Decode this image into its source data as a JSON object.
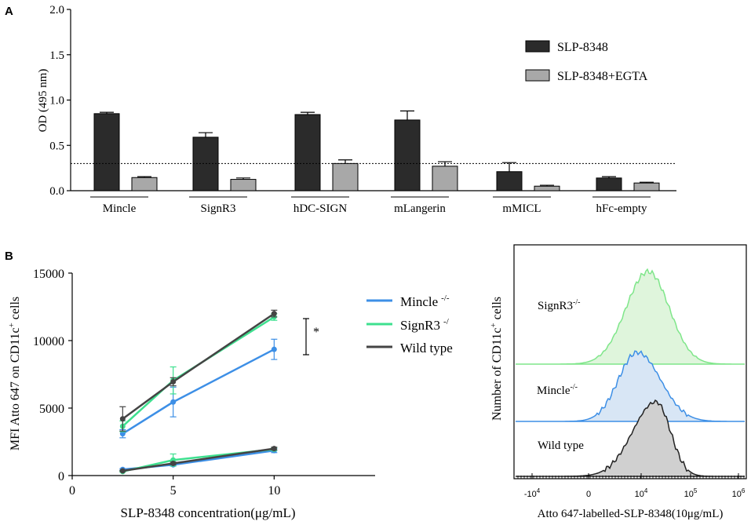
{
  "colors": {
    "bar_dark": "#2b2b2b",
    "bar_light": "#a8a8a8",
    "mincle": "#3d8fe6",
    "signr3": "#3ee08f",
    "wildtype": "#444444",
    "hist_signr3_fill": "#dff5dc",
    "hist_mincle_fill": "#d8e6f5",
    "hist_wt_fill": "#d0d0d0"
  },
  "chart_data": [
    {
      "panel": "A",
      "type": "bar",
      "title": "",
      "ylabel": "OD (495 nm)",
      "xlabel": "",
      "ylim": [
        0,
        2.0
      ],
      "yticks": [
        "0.0",
        "0.5",
        "1.0",
        "1.5",
        "2.0"
      ],
      "threshold": 0.3,
      "categories": [
        "Mincle",
        "SignR3",
        "hDC-SIGN",
        "mLangerin",
        "mMICL",
        "hFc-empty"
      ],
      "series": [
        {
          "name": "SLP-8348",
          "values": [
            0.85,
            0.59,
            0.84,
            0.78,
            0.21,
            0.14
          ],
          "errors": [
            0.015,
            0.05,
            0.025,
            0.1,
            0.1,
            0.015
          ]
        },
        {
          "name": "SLP-8348+EGTA",
          "values": [
            0.145,
            0.125,
            0.3,
            0.27,
            0.05,
            0.085
          ],
          "errors": [
            0.01,
            0.015,
            0.04,
            0.05,
            0.01,
            0.008
          ]
        }
      ],
      "legend": "top-right"
    },
    {
      "panel": "B",
      "type": "line",
      "title": "",
      "xlabel": "SLP-8348 concentration(μg/mL)",
      "ylabel": "MFI Atto 647 on CD11c+ cells",
      "xlim": [
        0,
        15
      ],
      "ylim": [
        0,
        15000
      ],
      "xticks": [
        "0",
        "5",
        "10"
      ],
      "yticks": [
        "0",
        "5000",
        "10000",
        "15000"
      ],
      "x": [
        2.5,
        5,
        10
      ],
      "series": [
        {
          "name": "Mincle -/-",
          "upper": [
            3100,
            5450,
            9350
          ],
          "upper_err": [
            300,
            1100,
            750
          ],
          "lower": [
            450,
            800,
            1850
          ],
          "lower_err": [
            60,
            100,
            150
          ]
        },
        {
          "name": "SignR3 -/",
          "upper": [
            3650,
            7050,
            11750
          ],
          "upper_err": [
            400,
            1000,
            250
          ],
          "lower": [
            300,
            1150,
            1950
          ],
          "lower_err": [
            50,
            450,
            100
          ]
        },
        {
          "name": "Wild type",
          "upper": [
            4200,
            6950,
            12000
          ],
          "upper_err": [
            900,
            300,
            250
          ],
          "lower": [
            350,
            900,
            2000
          ],
          "lower_err": [
            40,
            100,
            100
          ]
        }
      ],
      "annotation": "*",
      "legend": "right"
    },
    {
      "panel": "B-histogram",
      "type": "area",
      "xlabel": "Atto 647-labelled-SLP-8348(10μg/mL)",
      "ylabel": "Number of CD11c+ cells",
      "xticks": [
        "-10^4",
        "0",
        "10^4",
        "10^5",
        "10^6"
      ],
      "series": [
        "SignR3-/-",
        "Mincle-/-",
        "Wild type"
      ]
    }
  ],
  "panel_labels": {
    "a": "A",
    "b": "B"
  },
  "text": {
    "a_ylabel": "OD (495 nm)",
    "b_xlabel": "SLP-8348 concentration(μg/mL)",
    "b_ylabel_main": "MFI Atto 647 on CD11c",
    "b_ylabel_sup": "+",
    "b_ylabel_tail": " cells",
    "hist_xlabel": "Atto 647-labelled-SLP-8348(10μg/mL)",
    "hist_ylabel_main": "Number of CD11c",
    "hist_ylabel_sup": "+",
    "hist_ylabel_tail": " cells",
    "hist_label_signr3": "SignR3",
    "hist_label_signr3_sup": "-/-",
    "hist_label_mincle": "Mincle",
    "hist_label_mincle_sup": "-/-",
    "hist_label_wt": "Wild type",
    "legend_b_mincle": "Mincle",
    "legend_b_mincle_sup": "-/-",
    "legend_b_signr3": "SignR3",
    "legend_b_signr3_sup": "-/",
    "legend_b_wt": "Wild type",
    "star": "*"
  }
}
